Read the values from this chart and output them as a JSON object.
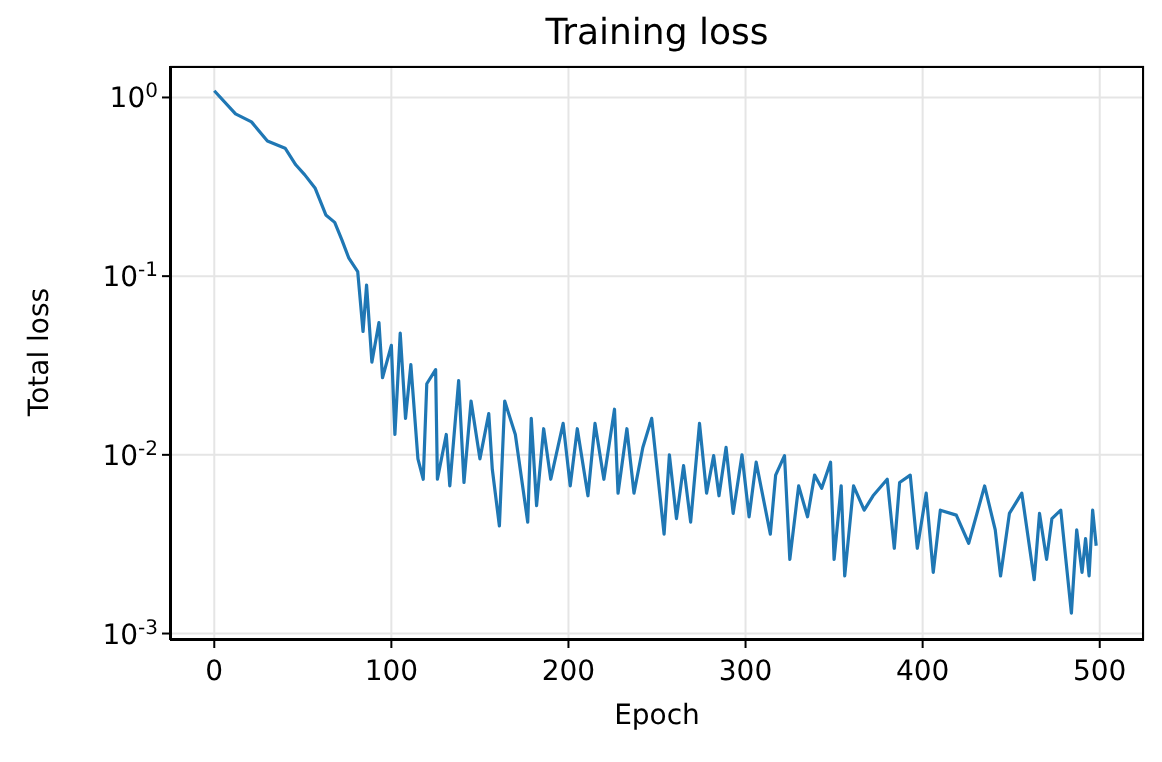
{
  "chart_data": {
    "type": "line",
    "title": "Training loss",
    "xlabel": "Epoch",
    "ylabel": "Total loss",
    "log": "y",
    "grid": true,
    "marker": "none",
    "line_style": "solid",
    "legend": false,
    "xlim": [
      -25,
      525
    ],
    "xticks": [
      0,
      100,
      200,
      300,
      400,
      500
    ],
    "ylim": [
      0.00092,
      1.5
    ],
    "yticks": [
      {
        "value": 1,
        "label": "10$^{0}$"
      },
      {
        "value": 0.1,
        "label": "10$^{-1}$"
      },
      {
        "value": 0.01,
        "label": "10$^{-2}$"
      },
      {
        "value": 0.001,
        "label": "10$^{-3}$"
      }
    ],
    "x": [
      0,
      12,
      21,
      30,
      40,
      46,
      51,
      57,
      63,
      68,
      72,
      76,
      81,
      84,
      86,
      89,
      93,
      95,
      100,
      102,
      105,
      108,
      111,
      115,
      118,
      120,
      125,
      126,
      131,
      133,
      138,
      141,
      145,
      150,
      155,
      157,
      161,
      164,
      170,
      177,
      179,
      182,
      186,
      190,
      197,
      201,
      205,
      211,
      215,
      220,
      226,
      228,
      233,
      237,
      242,
      247,
      254,
      257,
      261,
      265,
      269,
      274,
      278,
      282,
      285,
      289,
      293,
      298,
      302,
      306,
      314,
      317,
      322,
      325,
      330,
      335,
      339,
      343,
      348,
      350,
      354,
      356,
      361,
      367,
      372,
      380,
      384,
      387,
      393,
      397,
      402,
      406,
      410,
      419,
      426,
      435,
      441,
      444,
      449,
      456,
      463,
      466,
      470,
      473,
      478,
      484,
      487,
      490,
      492,
      494,
      496,
      498
    ],
    "series": [
      {
        "color": "#1f77b4",
        "values": [
          1.09,
          0.81,
          0.73,
          0.57,
          0.52,
          0.42,
          0.37,
          0.31,
          0.22,
          0.2,
          0.16,
          0.126,
          0.106,
          0.049,
          0.089,
          0.033,
          0.055,
          0.027,
          0.041,
          0.013,
          0.048,
          0.016,
          0.032,
          0.0095,
          0.0073,
          0.025,
          0.03,
          0.0073,
          0.013,
          0.0067,
          0.026,
          0.007,
          0.02,
          0.0095,
          0.017,
          0.0083,
          0.004,
          0.02,
          0.013,
          0.0042,
          0.016,
          0.0052,
          0.014,
          0.0073,
          0.015,
          0.0067,
          0.014,
          0.0059,
          0.015,
          0.0073,
          0.018,
          0.0061,
          0.014,
          0.0061,
          0.011,
          0.016,
          0.0036,
          0.01,
          0.0044,
          0.0087,
          0.0042,
          0.015,
          0.0061,
          0.0099,
          0.0059,
          0.011,
          0.0047,
          0.01,
          0.0045,
          0.0091,
          0.0036,
          0.0077,
          0.0099,
          0.0026,
          0.0067,
          0.0045,
          0.0077,
          0.0065,
          0.0091,
          0.0026,
          0.0067,
          0.0021,
          0.0067,
          0.0049,
          0.0059,
          0.0073,
          0.003,
          0.007,
          0.0077,
          0.003,
          0.0061,
          0.0022,
          0.0049,
          0.0046,
          0.0032,
          0.0067,
          0.0038,
          0.0021,
          0.0047,
          0.0061,
          0.002,
          0.0047,
          0.0026,
          0.0044,
          0.0049,
          0.0013,
          0.0038,
          0.0022,
          0.0034,
          0.0021,
          0.0049,
          0.0031
        ]
      }
    ]
  }
}
